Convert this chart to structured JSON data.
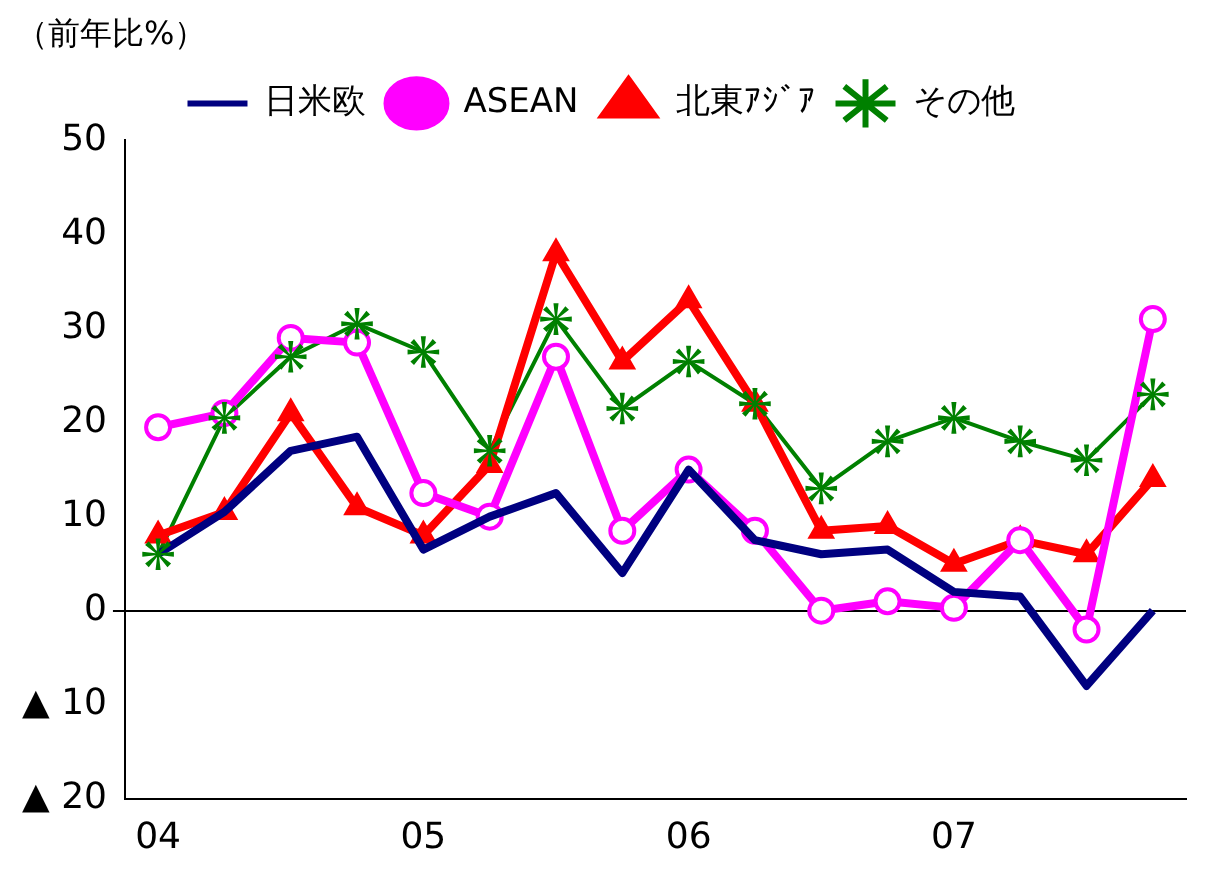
{
  "chart_data": {
    "type": "line",
    "ylabel": "（前年比%）",
    "categories": [
      "04",
      null,
      null,
      null,
      "05",
      null,
      null,
      null,
      "06",
      null,
      null,
      null,
      "07",
      null,
      null,
      null
    ],
    "series": [
      {
        "name": "日米欧",
        "color": "#000080",
        "marker": "none",
        "values": [
          6,
          10.5,
          17,
          18.5,
          6.5,
          10,
          12.5,
          4,
          15,
          7.5,
          6,
          6.5,
          2,
          1.5,
          -8,
          0
        ]
      },
      {
        "name": "ASEAN",
        "color": "#ff00ff",
        "marker": "circle",
        "values": [
          19.5,
          21,
          29,
          28.5,
          12.5,
          10,
          27,
          8.5,
          15,
          8.5,
          0,
          1,
          0.3,
          7.5,
          -2,
          31
        ]
      },
      {
        "name": "北東ｱｼﾞｱ",
        "color": "#ff0000",
        "marker": "triangle",
        "values": [
          8,
          10.5,
          21,
          11,
          8,
          15.5,
          38,
          26.5,
          33,
          22,
          8.5,
          9,
          5,
          7.5,
          6,
          14
        ]
      },
      {
        "name": "その他",
        "color": "#008000",
        "marker": "star",
        "values": [
          6,
          20.5,
          27,
          30.5,
          27.5,
          17,
          31,
          21.5,
          26.5,
          22,
          13,
          18,
          20.5,
          18,
          16,
          23
        ]
      }
    ],
    "ylim": [
      -20,
      50
    ],
    "yticks": [
      {
        "value": -20,
        "label": "▲ 20"
      },
      {
        "value": -10,
        "label": "▲ 10"
      },
      0,
      10,
      20,
      30,
      40,
      50
    ],
    "legend": "top",
    "line_style": "solid"
  }
}
